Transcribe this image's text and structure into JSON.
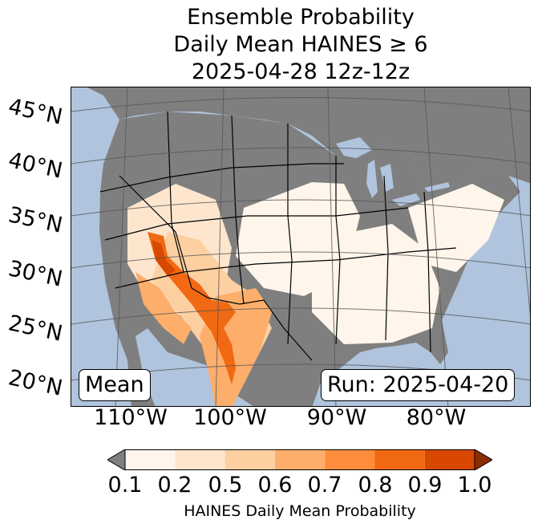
{
  "title": {
    "line1": "Ensemble Probability",
    "line2": "Daily Mean HAINES ≥ 6",
    "line3": "2025-04-28 12z-12z"
  },
  "lat_labels": [
    "45°N",
    "40°N",
    "35°N",
    "30°N",
    "25°N",
    "20°N"
  ],
  "lon_labels": [
    "110°W",
    "100°W",
    "90°W",
    "80°W"
  ],
  "mean_label": "Mean",
  "run_label": "Run: 2025-04-20",
  "colorbar": {
    "ticks": [
      "0.1",
      "0.2",
      "0.5",
      "0.6",
      "0.7",
      "0.8",
      "0.9",
      "1.0"
    ],
    "label": "HAINES Daily Mean Probability",
    "under_color": "#7f7f7f",
    "colors": [
      "#fff5eb",
      "#fee6ce",
      "#fdd0a2",
      "#fdae6b",
      "#fd8d3c",
      "#f16913",
      "#d94801"
    ],
    "over_color": "#8c2d04"
  },
  "map_colors": {
    "ocean": "#b0c4de",
    "no_data": "#7f7f7f",
    "lakes": "#b0c4de"
  }
}
